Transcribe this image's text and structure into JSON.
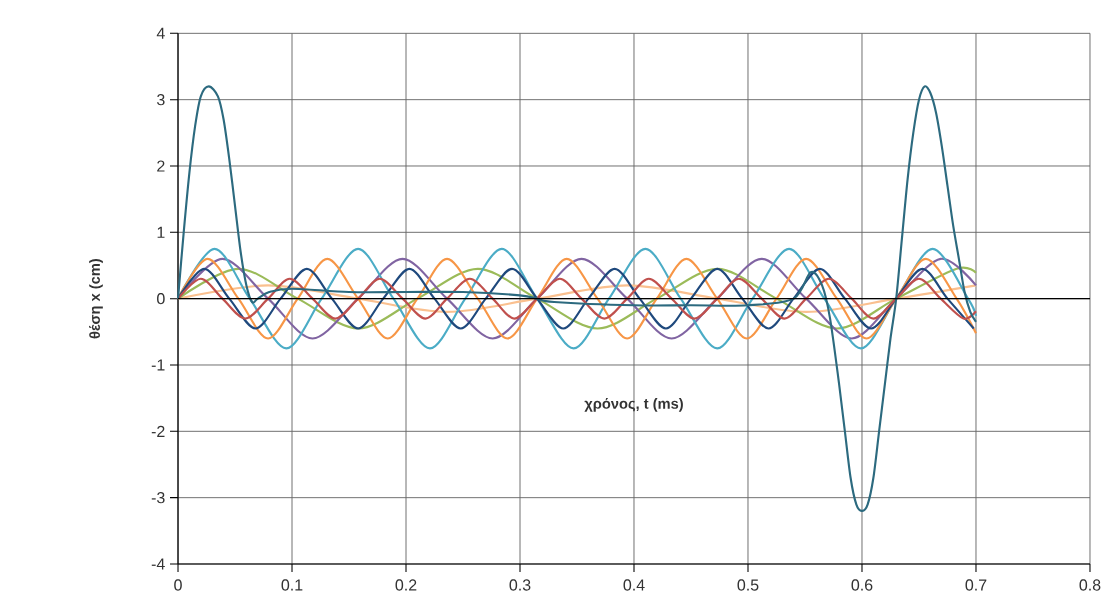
{
  "chart_data": {
    "type": "line",
    "xlabel": "χρόνος, t (ms)",
    "ylabel": "θέση x (cm)",
    "xlim": [
      0,
      0.8
    ],
    "ylim": [
      -4,
      4
    ],
    "xticks": [
      0,
      0.1,
      0.2,
      0.3,
      0.4,
      0.5,
      0.6,
      0.7,
      0.8
    ],
    "yticks": [
      -4,
      -3,
      -2,
      -1,
      0,
      1,
      2,
      3,
      4
    ],
    "grid": true,
    "marker": "none",
    "line_style": "solid",
    "series": [
      {
        "color": "#fac08f",
        "x": [
          0,
          0.079,
          0.158,
          0.236,
          0.315,
          0.394,
          0.473,
          0.551,
          0.63,
          0.7
        ],
        "values": [
          0,
          0.2,
          0,
          -0.2,
          0,
          0.2,
          0,
          -0.2,
          0,
          0.2
        ]
      },
      {
        "color": "#9bbb59",
        "x": [
          0,
          0.053,
          0.105,
          0.158,
          0.21,
          0.263,
          0.315,
          0.368,
          0.42,
          0.473,
          0.525,
          0.578,
          0.63,
          0.683,
          0.7
        ],
        "values": [
          0,
          0.45,
          0,
          -0.45,
          0,
          0.45,
          0,
          -0.45,
          0,
          0.45,
          0,
          -0.45,
          0,
          0.45,
          0.39
        ]
      },
      {
        "color": "#8064a2",
        "x": [
          0,
          0.039,
          0.079,
          0.118,
          0.158,
          0.197,
          0.236,
          0.276,
          0.315,
          0.354,
          0.394,
          0.433,
          0.473,
          0.512,
          0.551,
          0.591,
          0.63,
          0.669,
          0.7
        ],
        "values": [
          0,
          0.6,
          0,
          -0.6,
          0,
          0.6,
          0,
          -0.6,
          0,
          0.6,
          0,
          -0.6,
          0,
          0.6,
          0,
          -0.6,
          0,
          0.6,
          0.2
        ]
      },
      {
        "color": "#4bacc6",
        "x": [
          0,
          0.032,
          0.063,
          0.095,
          0.126,
          0.158,
          0.189,
          0.221,
          0.252,
          0.284,
          0.315,
          0.347,
          0.378,
          0.41,
          0.441,
          0.473,
          0.504,
          0.536,
          0.567,
          0.599,
          0.63,
          0.662,
          0.693,
          0.7
        ],
        "values": [
          0,
          0.75,
          0,
          -0.75,
          0,
          0.75,
          0,
          -0.75,
          0,
          0.75,
          0,
          -0.75,
          0,
          0.75,
          0,
          -0.75,
          0,
          0.75,
          0,
          -0.75,
          0,
          0.75,
          0,
          -0.26
        ]
      },
      {
        "color": "#f79646",
        "x": [
          0,
          0.026,
          0.053,
          0.079,
          0.105,
          0.131,
          0.158,
          0.184,
          0.21,
          0.236,
          0.263,
          0.289,
          0.315,
          0.341,
          0.368,
          0.394,
          0.42,
          0.446,
          0.473,
          0.499,
          0.525,
          0.551,
          0.578,
          0.604,
          0.63,
          0.656,
          0.683,
          0.7
        ],
        "values": [
          0,
          0.6,
          0,
          -0.6,
          0,
          0.6,
          0,
          -0.6,
          0,
          0.6,
          0,
          -0.6,
          0,
          0.6,
          0,
          -0.6,
          0,
          0.6,
          0,
          -0.6,
          0,
          0.6,
          0,
          -0.6,
          0,
          0.6,
          0,
          -0.52
        ]
      },
      {
        "color": "#1f497d",
        "x": [
          0,
          0.023,
          0.045,
          0.068,
          0.09,
          0.113,
          0.135,
          0.158,
          0.18,
          0.203,
          0.225,
          0.248,
          0.27,
          0.293,
          0.315,
          0.338,
          0.36,
          0.383,
          0.405,
          0.428,
          0.45,
          0.473,
          0.495,
          0.518,
          0.54,
          0.563,
          0.585,
          0.608,
          0.63,
          0.653,
          0.675,
          0.698
        ],
        "values": [
          0,
          0.45,
          0,
          -0.45,
          0,
          0.45,
          0,
          -0.45,
          0,
          0.45,
          0,
          -0.45,
          0,
          0.45,
          0,
          -0.45,
          0,
          0.45,
          0,
          -0.45,
          0,
          0.45,
          0,
          -0.45,
          0,
          0.45,
          0,
          -0.45,
          0,
          0.45,
          0,
          -0.45
        ]
      },
      {
        "color": "#c0504d",
        "x": [
          0,
          0.02,
          0.039,
          0.059,
          0.079,
          0.098,
          0.118,
          0.138,
          0.158,
          0.177,
          0.197,
          0.217,
          0.236,
          0.256,
          0.276,
          0.295,
          0.315,
          0.335,
          0.354,
          0.374,
          0.394,
          0.413,
          0.433,
          0.453,
          0.473,
          0.492,
          0.512,
          0.532,
          0.551,
          0.571,
          0.591,
          0.61,
          0.63,
          0.65,
          0.669,
          0.689,
          0.7
        ],
        "values": [
          0,
          0.3,
          0,
          -0.3,
          0,
          0.3,
          0,
          -0.3,
          0,
          0.3,
          0,
          -0.3,
          0,
          0.3,
          0,
          -0.3,
          0,
          0.3,
          0,
          -0.3,
          0,
          0.3,
          0,
          -0.3,
          0,
          0.3,
          0,
          -0.3,
          0,
          0.3,
          0,
          -0.3,
          0,
          0.3,
          0,
          -0.3,
          -0.19
        ]
      },
      {
        "color": "#2c6a7f",
        "x": [
          0,
          0.005,
          0.01,
          0.015,
          0.02,
          0.027,
          0.035,
          0.04,
          0.045,
          0.05,
          0.055,
          0.06,
          0.065,
          0.07,
          0.08,
          0.1,
          0.15,
          0.2,
          0.25,
          0.3,
          0.315,
          0.33,
          0.4,
          0.45,
          0.5,
          0.54,
          0.555,
          0.565,
          0.572,
          0.58,
          0.585,
          0.59,
          0.595,
          0.6,
          0.605,
          0.61,
          0.615,
          0.62,
          0.625,
          0.63,
          0.635,
          0.64,
          0.645,
          0.65,
          0.655,
          0.66,
          0.665,
          0.67,
          0.675,
          0.68,
          0.685,
          0.69,
          0.695,
          0.7
        ],
        "values": [
          0,
          1.0,
          1.9,
          2.6,
          3.05,
          3.2,
          3.05,
          2.7,
          2.1,
          1.4,
          0.7,
          0.2,
          -0.05,
          0,
          0.1,
          0.15,
          0.1,
          0.1,
          0.1,
          0.05,
          0,
          -0.05,
          -0.1,
          -0.1,
          -0.1,
          0,
          0.4,
          0.2,
          -0.3,
          -1.3,
          -2.0,
          -2.7,
          -3.1,
          -3.2,
          -3.1,
          -2.7,
          -2.0,
          -1.3,
          -0.6,
          0,
          0.9,
          1.8,
          2.5,
          3.0,
          3.2,
          3.1,
          2.8,
          2.3,
          1.7,
          1.1,
          0.6,
          0.1,
          -0.2,
          -0.35
        ]
      }
    ]
  }
}
